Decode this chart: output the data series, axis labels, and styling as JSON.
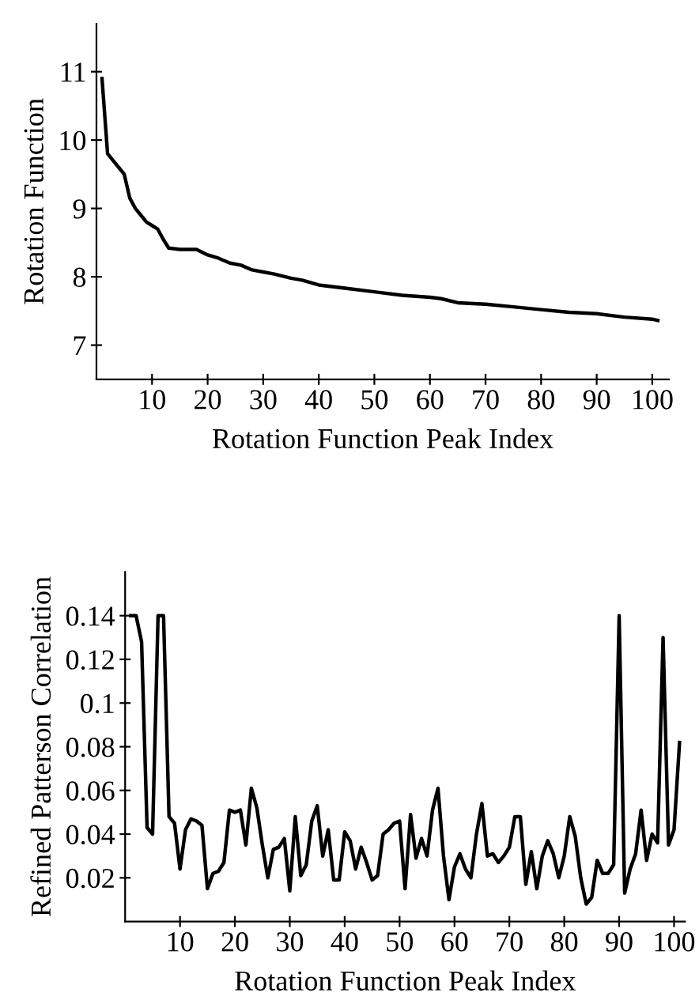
{
  "chart_data": [
    {
      "type": "line",
      "xlabel": "Rotation Function Peak Index",
      "ylabel": "Rotation Function",
      "color": "#000000",
      "x": [
        1,
        2,
        3,
        4,
        5,
        6,
        7,
        8,
        9,
        10,
        11,
        12,
        13,
        15,
        18,
        20,
        22,
        24,
        26,
        28,
        30,
        32,
        35,
        37,
        40,
        45,
        50,
        55,
        60,
        62,
        65,
        70,
        75,
        80,
        85,
        90,
        95,
        100,
        101
      ],
      "values": [
        10.9,
        9.8,
        9.7,
        9.6,
        9.5,
        9.15,
        9.0,
        8.9,
        8.8,
        8.75,
        8.7,
        8.55,
        8.42,
        8.4,
        8.4,
        8.32,
        8.27,
        8.2,
        8.17,
        8.1,
        8.07,
        8.04,
        7.98,
        7.95,
        7.88,
        7.83,
        7.78,
        7.73,
        7.7,
        7.68,
        7.62,
        7.6,
        7.56,
        7.52,
        7.48,
        7.46,
        7.41,
        7.38,
        7.36
      ],
      "xlim": [
        0,
        103
      ],
      "ylim": [
        6.5,
        11.7
      ],
      "xticks": [
        10,
        20,
        30,
        40,
        50,
        60,
        70,
        80,
        90,
        100
      ],
      "yticks": [
        7,
        8,
        9,
        10,
        11
      ],
      "grid": false,
      "legend": false
    },
    {
      "type": "line",
      "xlabel": "Rotation Function Peak Index",
      "ylabel": "Refined Patterson Correlation",
      "color": "#000000",
      "x": [
        1,
        2,
        3,
        4,
        5,
        6,
        7,
        8,
        9,
        10,
        11,
        12,
        13,
        14,
        15,
        16,
        17,
        18,
        19,
        20,
        21,
        22,
        23,
        24,
        25,
        26,
        27,
        28,
        29,
        30,
        31,
        32,
        33,
        34,
        35,
        36,
        37,
        38,
        39,
        40,
        41,
        42,
        43,
        44,
        45,
        46,
        47,
        48,
        49,
        50,
        51,
        52,
        53,
        54,
        55,
        56,
        57,
        58,
        59,
        60,
        61,
        62,
        63,
        64,
        65,
        66,
        67,
        68,
        69,
        70,
        71,
        72,
        73,
        74,
        75,
        76,
        77,
        78,
        79,
        80,
        81,
        82,
        83,
        84,
        85,
        86,
        87,
        88,
        89,
        90,
        91,
        92,
        93,
        94,
        95,
        96,
        97,
        98,
        99,
        100,
        101
      ],
      "values": [
        0.14,
        0.14,
        0.128,
        0.043,
        0.04,
        0.14,
        0.14,
        0.048,
        0.045,
        0.024,
        0.042,
        0.047,
        0.046,
        0.044,
        0.015,
        0.022,
        0.023,
        0.027,
        0.051,
        0.05,
        0.051,
        0.035,
        0.061,
        0.052,
        0.035,
        0.02,
        0.033,
        0.034,
        0.038,
        0.014,
        0.048,
        0.021,
        0.026,
        0.046,
        0.053,
        0.03,
        0.042,
        0.019,
        0.019,
        0.041,
        0.037,
        0.024,
        0.034,
        0.027,
        0.019,
        0.021,
        0.04,
        0.042,
        0.045,
        0.046,
        0.015,
        0.049,
        0.029,
        0.038,
        0.03,
        0.051,
        0.061,
        0.03,
        0.01,
        0.025,
        0.031,
        0.024,
        0.02,
        0.04,
        0.054,
        0.03,
        0.031,
        0.027,
        0.03,
        0.034,
        0.048,
        0.048,
        0.017,
        0.032,
        0.015,
        0.03,
        0.037,
        0.031,
        0.02,
        0.03,
        0.048,
        0.039,
        0.02,
        0.008,
        0.011,
        0.028,
        0.022,
        0.022,
        0.026,
        0.14,
        0.013,
        0.024,
        0.031,
        0.051,
        0.028,
        0.04,
        0.036,
        0.13,
        0.035,
        0.042,
        0.082
      ],
      "xlim": [
        0,
        102
      ],
      "ylim": [
        0,
        0.16
      ],
      "xticks": [
        10,
        20,
        30,
        40,
        50,
        60,
        70,
        80,
        90,
        100
      ],
      "yticks": [
        0.02,
        0.04,
        0.06,
        0.08,
        {
          "value": 0.1,
          "label": "0.1"
        },
        0.12,
        0.14
      ],
      "grid": false,
      "legend": false
    }
  ]
}
